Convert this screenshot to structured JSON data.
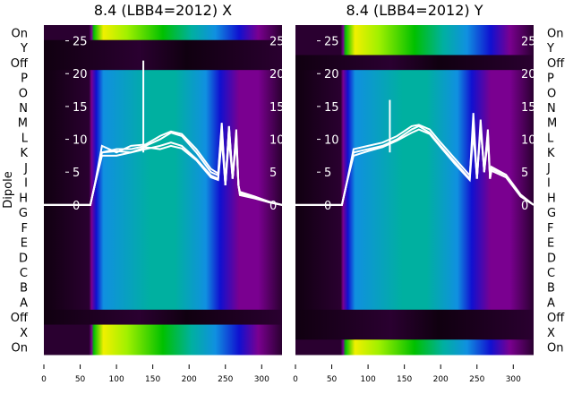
{
  "chart_data": {
    "type": "heatmap",
    "ylabel": "Dipole",
    "row_labels": [
      "On",
      "Y",
      "Off",
      "P",
      "O",
      "N",
      "M",
      "L",
      "K",
      "J",
      "I",
      "H",
      "G",
      "F",
      "E",
      "D",
      "C",
      "B",
      "A",
      "Off",
      "X",
      "On"
    ],
    "x_ticks": [
      0,
      50,
      100,
      150,
      200,
      250,
      300
    ],
    "xlim": [
      0,
      328
    ],
    "inner_y_ticks": [
      0,
      5,
      10,
      15,
      20,
      25
    ],
    "inner_ylim": [
      -22.8,
      27.4
    ],
    "colormap": [
      "#100010",
      "#2a0030",
      "#7a0090",
      "#1010d0",
      "#1090e0",
      "#00b0a0",
      "#00c000",
      "#a0f000",
      "#f0f000"
    ],
    "panels": [
      {
        "title": "8.4 (LBB4=2012) X",
        "row_profiles": [
          "bright",
          "dark",
          "dark",
          "main",
          "main",
          "main",
          "main",
          "main",
          "main",
          "main",
          "main",
          "main",
          "main",
          "main",
          "main",
          "main",
          "main",
          "main",
          "main",
          "dark",
          "bright",
          "bright"
        ],
        "spike": {
          "x": 137,
          "y": 22
        },
        "series": [
          {
            "name": "s1",
            "x": [
              0,
              64,
              70,
              80,
              100,
              120,
              140,
              160,
              175,
              190,
              210,
              230,
              240,
              245,
              250,
              255,
              260,
              265,
              268,
              270,
              290,
              310,
              328
            ],
            "y": [
              0,
              0,
              3,
              8,
              8.5,
              8.5,
              9,
              10,
              11,
              10.5,
              8,
              5,
              4.5,
              12,
              3,
              12,
              4,
              11,
              3,
              1.8,
              1.2,
              0.5,
              0
            ]
          },
          {
            "name": "s2",
            "x": [
              0,
              64,
              70,
              80,
              100,
              120,
              140,
              160,
              175,
              190,
              210,
              230,
              240,
              245,
              250,
              255,
              260,
              265,
              268,
              270,
              290,
              310,
              328
            ],
            "y": [
              0,
              0,
              3,
              7.5,
              7.5,
              8,
              8.5,
              9,
              9.5,
              9,
              7,
              4.5,
              4,
              11,
              3,
              11.5,
              4,
              10,
              3,
              1.5,
              1,
              0.4,
              0
            ]
          },
          {
            "name": "s3",
            "x": [
              0,
              64,
              70,
              80,
              100,
              120,
              140,
              160,
              175,
              190,
              210,
              230,
              240,
              245,
              250,
              255,
              260,
              265,
              268,
              270,
              290,
              310,
              328
            ],
            "y": [
              0,
              0,
              3,
              9,
              8,
              9,
              9.2,
              10.5,
              11.2,
              10.8,
              8.5,
              5.5,
              4.8,
              12.5,
              3,
              12,
              4,
              11.5,
              3,
              2,
              1.3,
              0.5,
              0
            ]
          },
          {
            "name": "s4",
            "x": [
              0,
              64,
              70,
              80,
              100,
              120,
              140,
              160,
              175,
              190,
              210,
              230,
              240,
              245,
              250,
              255,
              260,
              265,
              268,
              270,
              290,
              310,
              328
            ],
            "y": [
              0,
              0,
              3,
              8,
              8.2,
              8,
              8.8,
              8.5,
              9,
              8.6,
              6.8,
              4.2,
              3.8,
              10,
              3,
              10,
              4,
              10.5,
              3,
              1.6,
              1.1,
              0.4,
              0
            ]
          }
        ]
      },
      {
        "title": "8.4 (LBB4=2012) Y",
        "row_profiles": [
          "bright",
          "bright",
          "dark",
          "main",
          "main",
          "main",
          "main",
          "main",
          "main",
          "main",
          "main",
          "main",
          "main",
          "main",
          "main",
          "main",
          "main",
          "main",
          "main",
          "dark",
          "dark",
          "bright"
        ],
        "spike": {
          "x": 130,
          "y": 16
        },
        "series": [
          {
            "name": "s1",
            "x": [
              0,
              64,
              70,
              80,
              100,
              120,
              140,
              160,
              170,
              185,
              200,
              220,
              240,
              245,
              250,
              255,
              260,
              265,
              268,
              270,
              290,
              310,
              328
            ],
            "y": [
              0,
              0,
              3,
              8,
              8.5,
              9,
              10,
              11.5,
              12,
              11,
              9,
              6.5,
              4,
              14,
              4,
              12,
              5,
              11,
              4,
              5.5,
              4.5,
              1.5,
              0
            ]
          },
          {
            "name": "s2",
            "x": [
              0,
              64,
              70,
              80,
              100,
              120,
              140,
              160,
              170,
              185,
              200,
              220,
              240,
              245,
              250,
              255,
              260,
              265,
              268,
              270,
              290,
              310,
              328
            ],
            "y": [
              0,
              0,
              3,
              8.5,
              9,
              9.5,
              10.5,
              12,
              12.2,
              11.5,
              9.5,
              7,
              4.5,
              12,
              4,
              12,
              5,
              10,
              4,
              5.2,
              4.2,
              1.3,
              0
            ]
          },
          {
            "name": "s3",
            "x": [
              0,
              64,
              70,
              80,
              100,
              120,
              140,
              160,
              170,
              185,
              200,
              220,
              240,
              245,
              250,
              255,
              260,
              265,
              268,
              270,
              290,
              310,
              328
            ],
            "y": [
              0,
              0,
              3,
              7.5,
              8.2,
              8.8,
              9.8,
              11,
              11.5,
              10.8,
              8.8,
              6.2,
              3.8,
              11,
              4,
              13,
              5,
              11.5,
              4,
              5.8,
              4.6,
              1.6,
              0
            ]
          }
        ]
      }
    ]
  }
}
